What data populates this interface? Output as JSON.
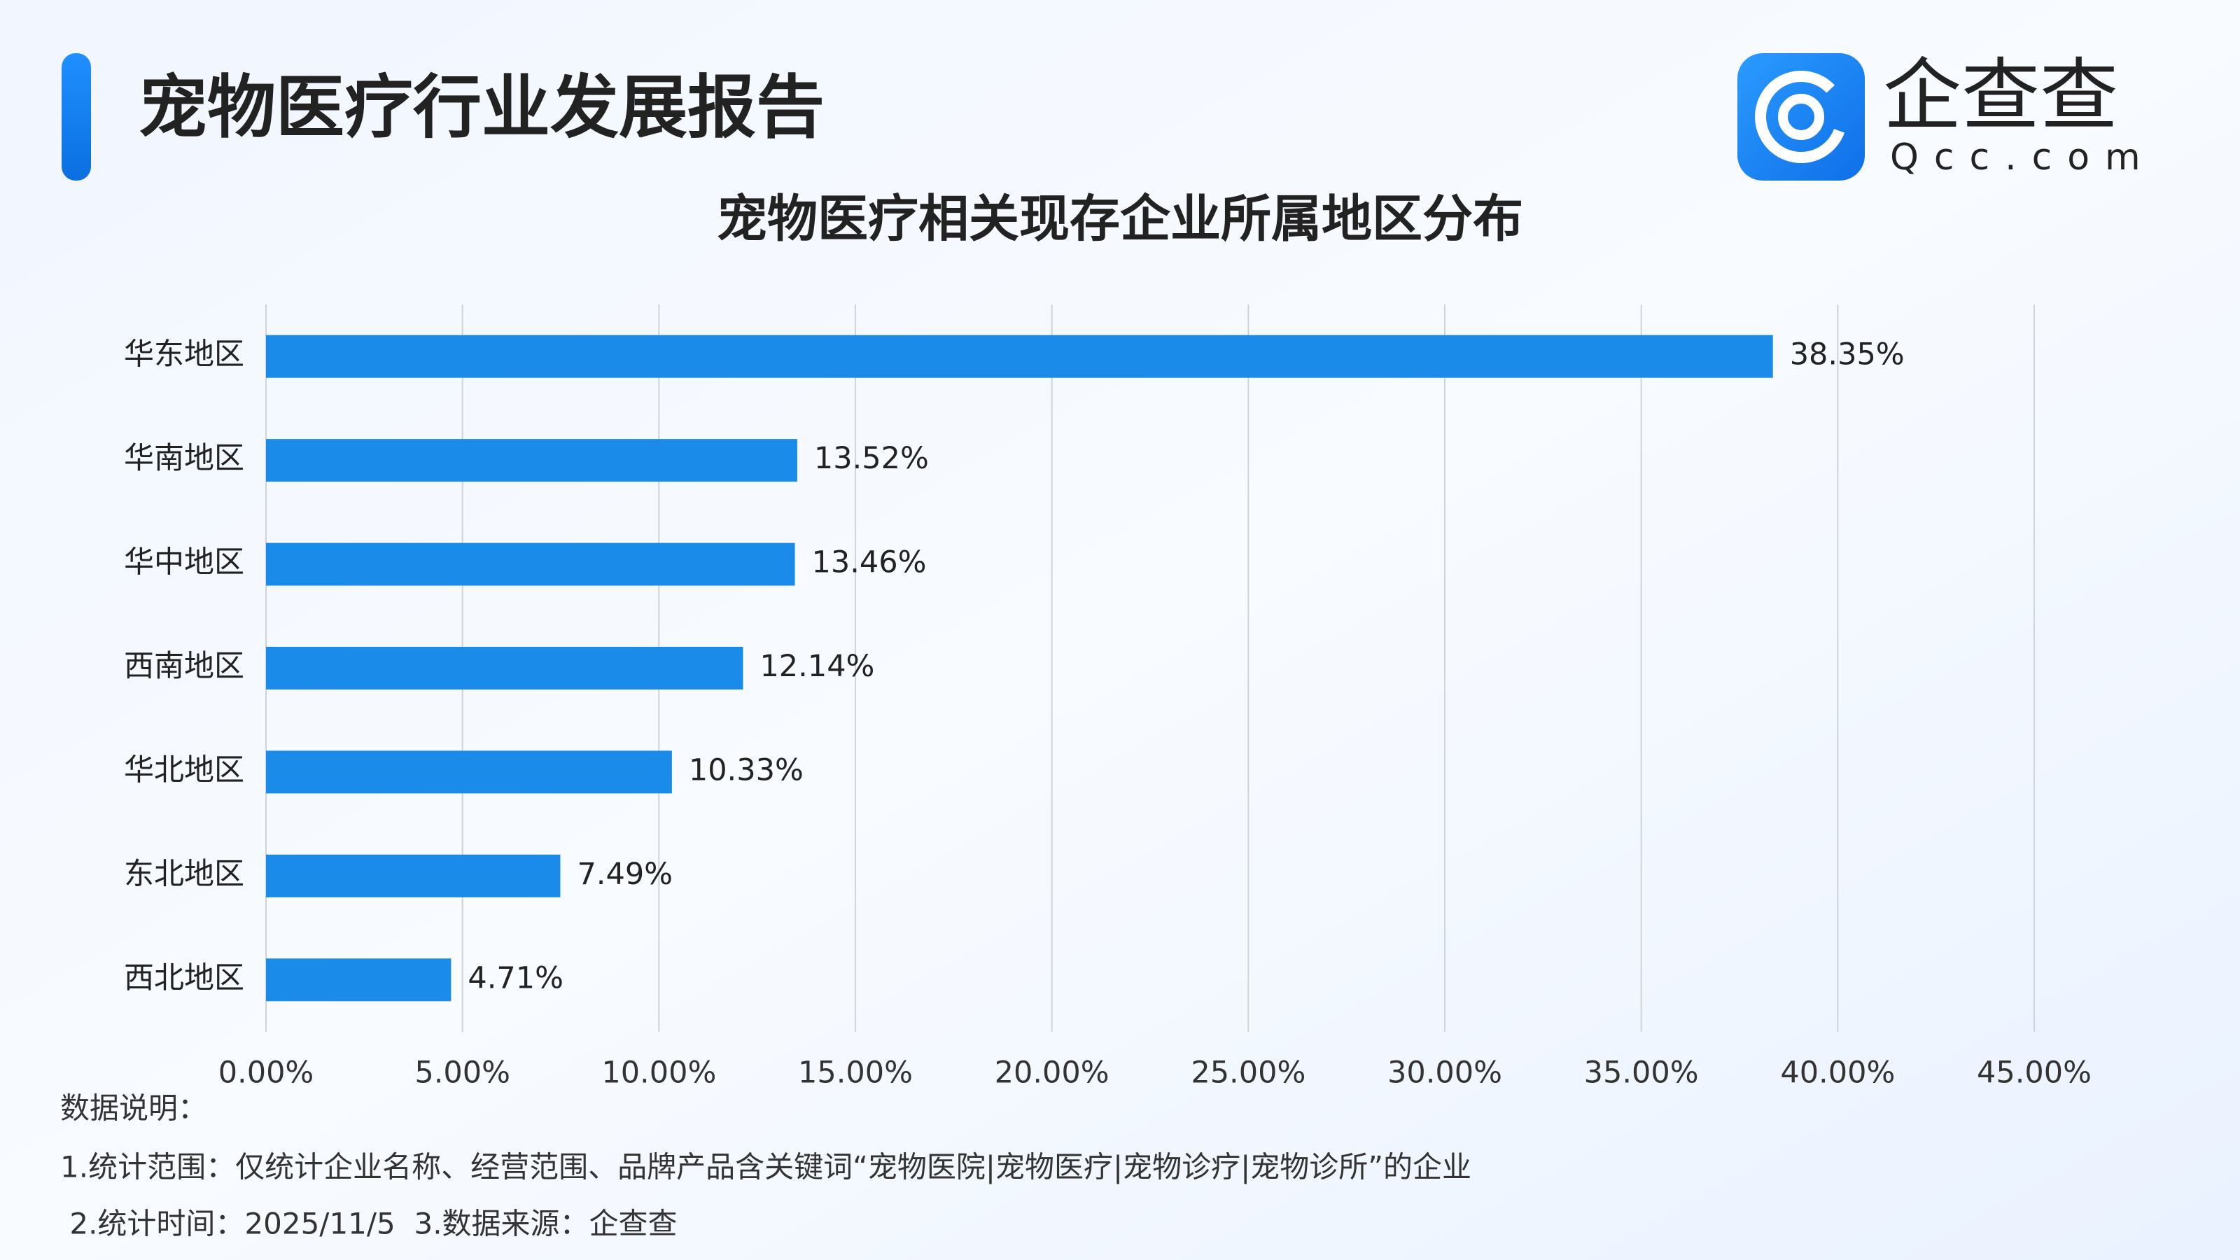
{
  "header": {
    "title": "宠物医疗行业发展报告",
    "logo_text": "企查查",
    "logo_subtext": "Qcc.com"
  },
  "chart_data": {
    "type": "bar",
    "orientation": "horizontal",
    "title": "宠物医疗相关现存企业所属地区分布",
    "categories": [
      "华东地区",
      "华南地区",
      "华中地区",
      "西南地区",
      "华北地区",
      "东北地区",
      "西北地区"
    ],
    "values": [
      38.35,
      13.52,
      13.46,
      12.14,
      10.33,
      7.49,
      4.71
    ],
    "value_labels": [
      "38.35%",
      "13.52%",
      "13.46%",
      "12.14%",
      "10.33%",
      "7.49%",
      "4.71%"
    ],
    "color": "#1a8be9",
    "xlim": [
      0,
      45
    ],
    "xticks": [
      {
        "value": 0,
        "label": "0.00%"
      },
      {
        "value": 5,
        "label": "5.00%"
      },
      {
        "value": 10,
        "label": "10.00%"
      },
      {
        "value": 15,
        "label": "15.00%"
      },
      {
        "value": 20,
        "label": "20.00%"
      },
      {
        "value": 25,
        "label": "25.00%"
      },
      {
        "value": 30,
        "label": "30.00%"
      },
      {
        "value": 35,
        "label": "35.00%"
      },
      {
        "value": 40,
        "label": "40.00%"
      },
      {
        "value": 45,
        "label": "45.00%"
      }
    ],
    "grid": true
  },
  "notes": [
    "数据说明：",
    "1.统计范围：仅统计企业名称、经营范围、品牌产品含关键词“宠物医院|宠物医疗|宠物诊疗|宠物诊所”的企业",
    " 2.统计时间：2025/11/5  3.数据来源：企查查"
  ]
}
